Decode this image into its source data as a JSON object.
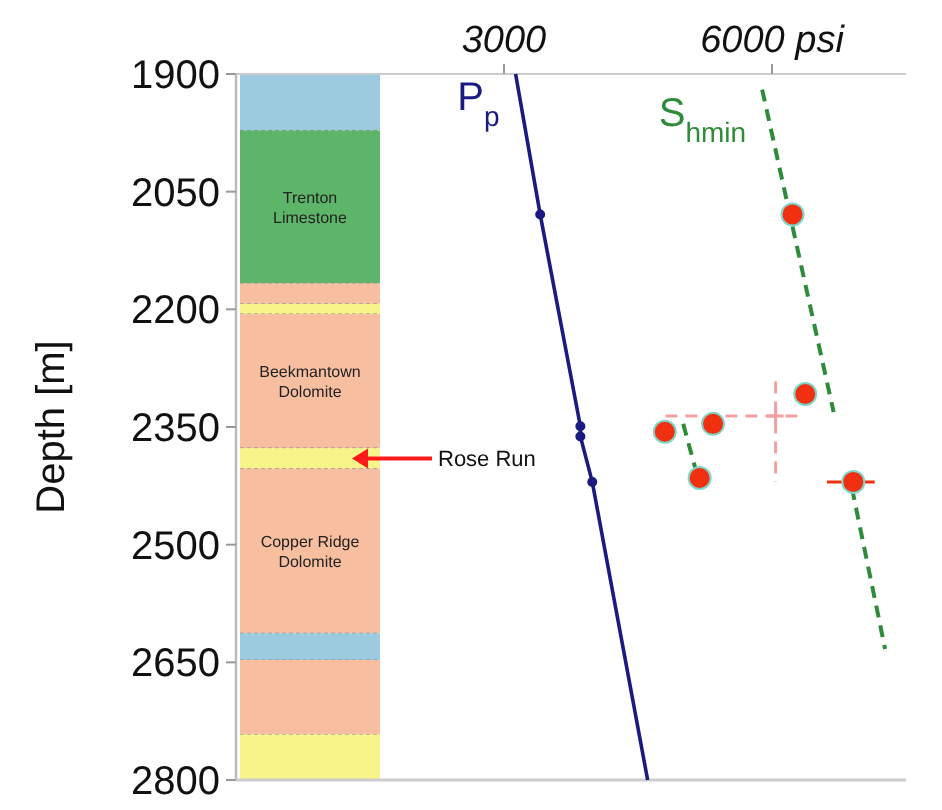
{
  "chart_data": {
    "type": "line",
    "ylabel": "Depth [m]",
    "ylim": [
      2800,
      1900
    ],
    "yticks": [
      1900,
      2050,
      2200,
      2350,
      2500,
      2650,
      2800
    ],
    "xlim": [
      0,
      7500
    ],
    "xticks": [
      3000,
      {
        "value": 6000,
        "label": "6000 psi"
      }
    ],
    "grid": false,
    "bands": [
      {
        "axis": "y",
        "from": 1900,
        "to": 1972,
        "color": "#9ccbdf",
        "label": null
      },
      {
        "axis": "y",
        "from": 1972,
        "to": 2167,
        "color": "#5db56a",
        "label": "Trenton Limestone"
      },
      {
        "axis": "y",
        "from": 2167,
        "to": 2193,
        "color": "#f7bfa0",
        "label": null
      },
      {
        "axis": "y",
        "from": 2193,
        "to": 2206,
        "color": "#f7f58a",
        "label": null
      },
      {
        "axis": "y",
        "from": 2206,
        "to": 2377,
        "color": "#f7bfa0",
        "label": "Beekmantown Dolomite"
      },
      {
        "axis": "y",
        "from": 2377,
        "to": 2403,
        "color": "#f7f58a",
        "label": "Rose Run"
      },
      {
        "axis": "y",
        "from": 2403,
        "to": 2613,
        "color": "#f7bfa0",
        "label": "Copper Ridge Dolomite"
      },
      {
        "axis": "y",
        "from": 2613,
        "to": 2647,
        "color": "#9ccbdf",
        "label": null
      },
      {
        "axis": "y",
        "from": 2647,
        "to": 2742,
        "color": "#f7bfa0",
        "label": null
      },
      {
        "axis": "y",
        "from": 2742,
        "to": 2800,
        "color": "#f7f58a",
        "label": null
      }
    ],
    "series": [
      {
        "name": "P$_{p}$",
        "color": "#1a1a80",
        "marker": "none",
        "line_style": "solid",
        "x": [
          3130,
          3405,
          3855,
          3855,
          3988,
          4608
        ],
        "values": [
          1900,
          2079,
          2349,
          2362,
          2420,
          2800
        ]
      },
      {
        "type": "scatter",
        "color": "#1a1a80",
        "marker": "circle",
        "x": [
          3405,
          3855,
          3855,
          3988
        ],
        "values": [
          2079,
          2349,
          2362,
          2420
        ]
      },
      {
        "name": "S$_{hmin}$",
        "color": "#2e8b3a",
        "marker": "none",
        "line_style": "dashed",
        "x": [
          5890,
          6690
        ],
        "values": [
          1920,
          2331
        ]
      },
      {
        "color": "#2e8b3a",
        "marker": "none",
        "line_style": "dashed",
        "x": [
          5006,
          5140
        ],
        "values": [
          2346,
          2402
        ]
      },
      {
        "color": "#2e8b3a",
        "marker": "none",
        "line_style": "dashed",
        "x": [
          6895,
          7266
        ],
        "values": [
          2428,
          2633
        ]
      },
      {
        "type": "scatter",
        "color": "#f4a0a0",
        "marker": "cross",
        "line_style": "dashed",
        "x": [
          6040
        ],
        "values": [
          2336
        ],
        "xerrors": [
          [
            4807,
            6313
          ]
        ],
        "errors": [
          [
            2292,
            2420
          ]
        ]
      },
      {
        "type": "scatter",
        "color": "#f03010",
        "marker": "circle",
        "line_style": "solid",
        "x": [
          6230,
          6372,
          5340,
          4800,
          5190,
          6910
        ],
        "values": [
          2079,
          2308,
          2346,
          2356,
          2415,
          2420
        ],
        "xerrors": [
          null,
          null,
          null,
          null,
          null,
          [
            6615,
            7150
          ]
        ]
      }
    ]
  }
}
